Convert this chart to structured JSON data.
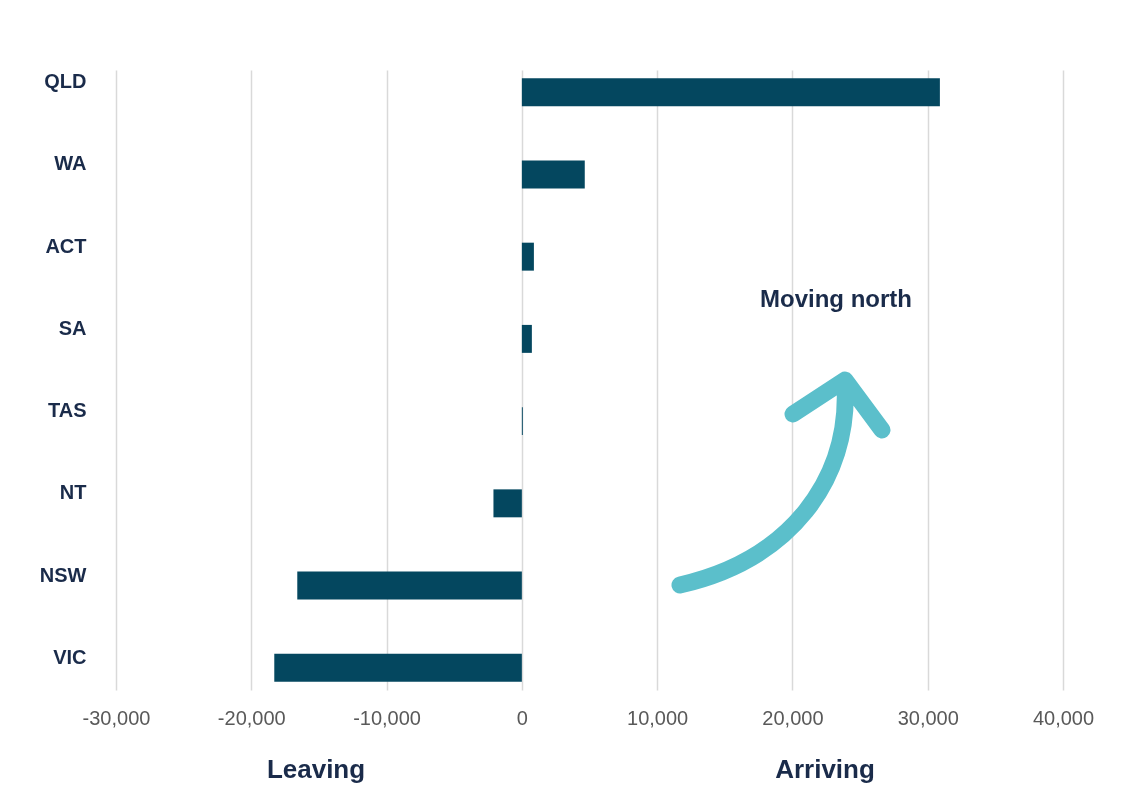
{
  "chart_data": {
    "type": "bar",
    "orientation": "horizontal",
    "categories": [
      "QLD",
      "WA",
      "ACT",
      "SA",
      "TAS",
      "NT",
      "NSW",
      "VIC"
    ],
    "values": [
      30900,
      4650,
      890,
      740,
      70,
      -2100,
      -16600,
      -18300
    ],
    "color": "#04475f",
    "xlim": [
      -30000,
      40000
    ],
    "xticks": [
      {
        "value": -30000,
        "label": "-30,000"
      },
      {
        "value": -20000,
        "label": "-20,000"
      },
      {
        "value": -10000,
        "label": "-10,000"
      },
      0,
      {
        "value": 10000,
        "label": "10,000"
      },
      {
        "value": 20000,
        "label": "20,000"
      },
      {
        "value": 30000,
        "label": "30,000"
      },
      {
        "value": 40000,
        "label": "40,000"
      }
    ],
    "grid": "x",
    "annotations": [
      "Leaving",
      "Arriving",
      "Moving north"
    ]
  }
}
